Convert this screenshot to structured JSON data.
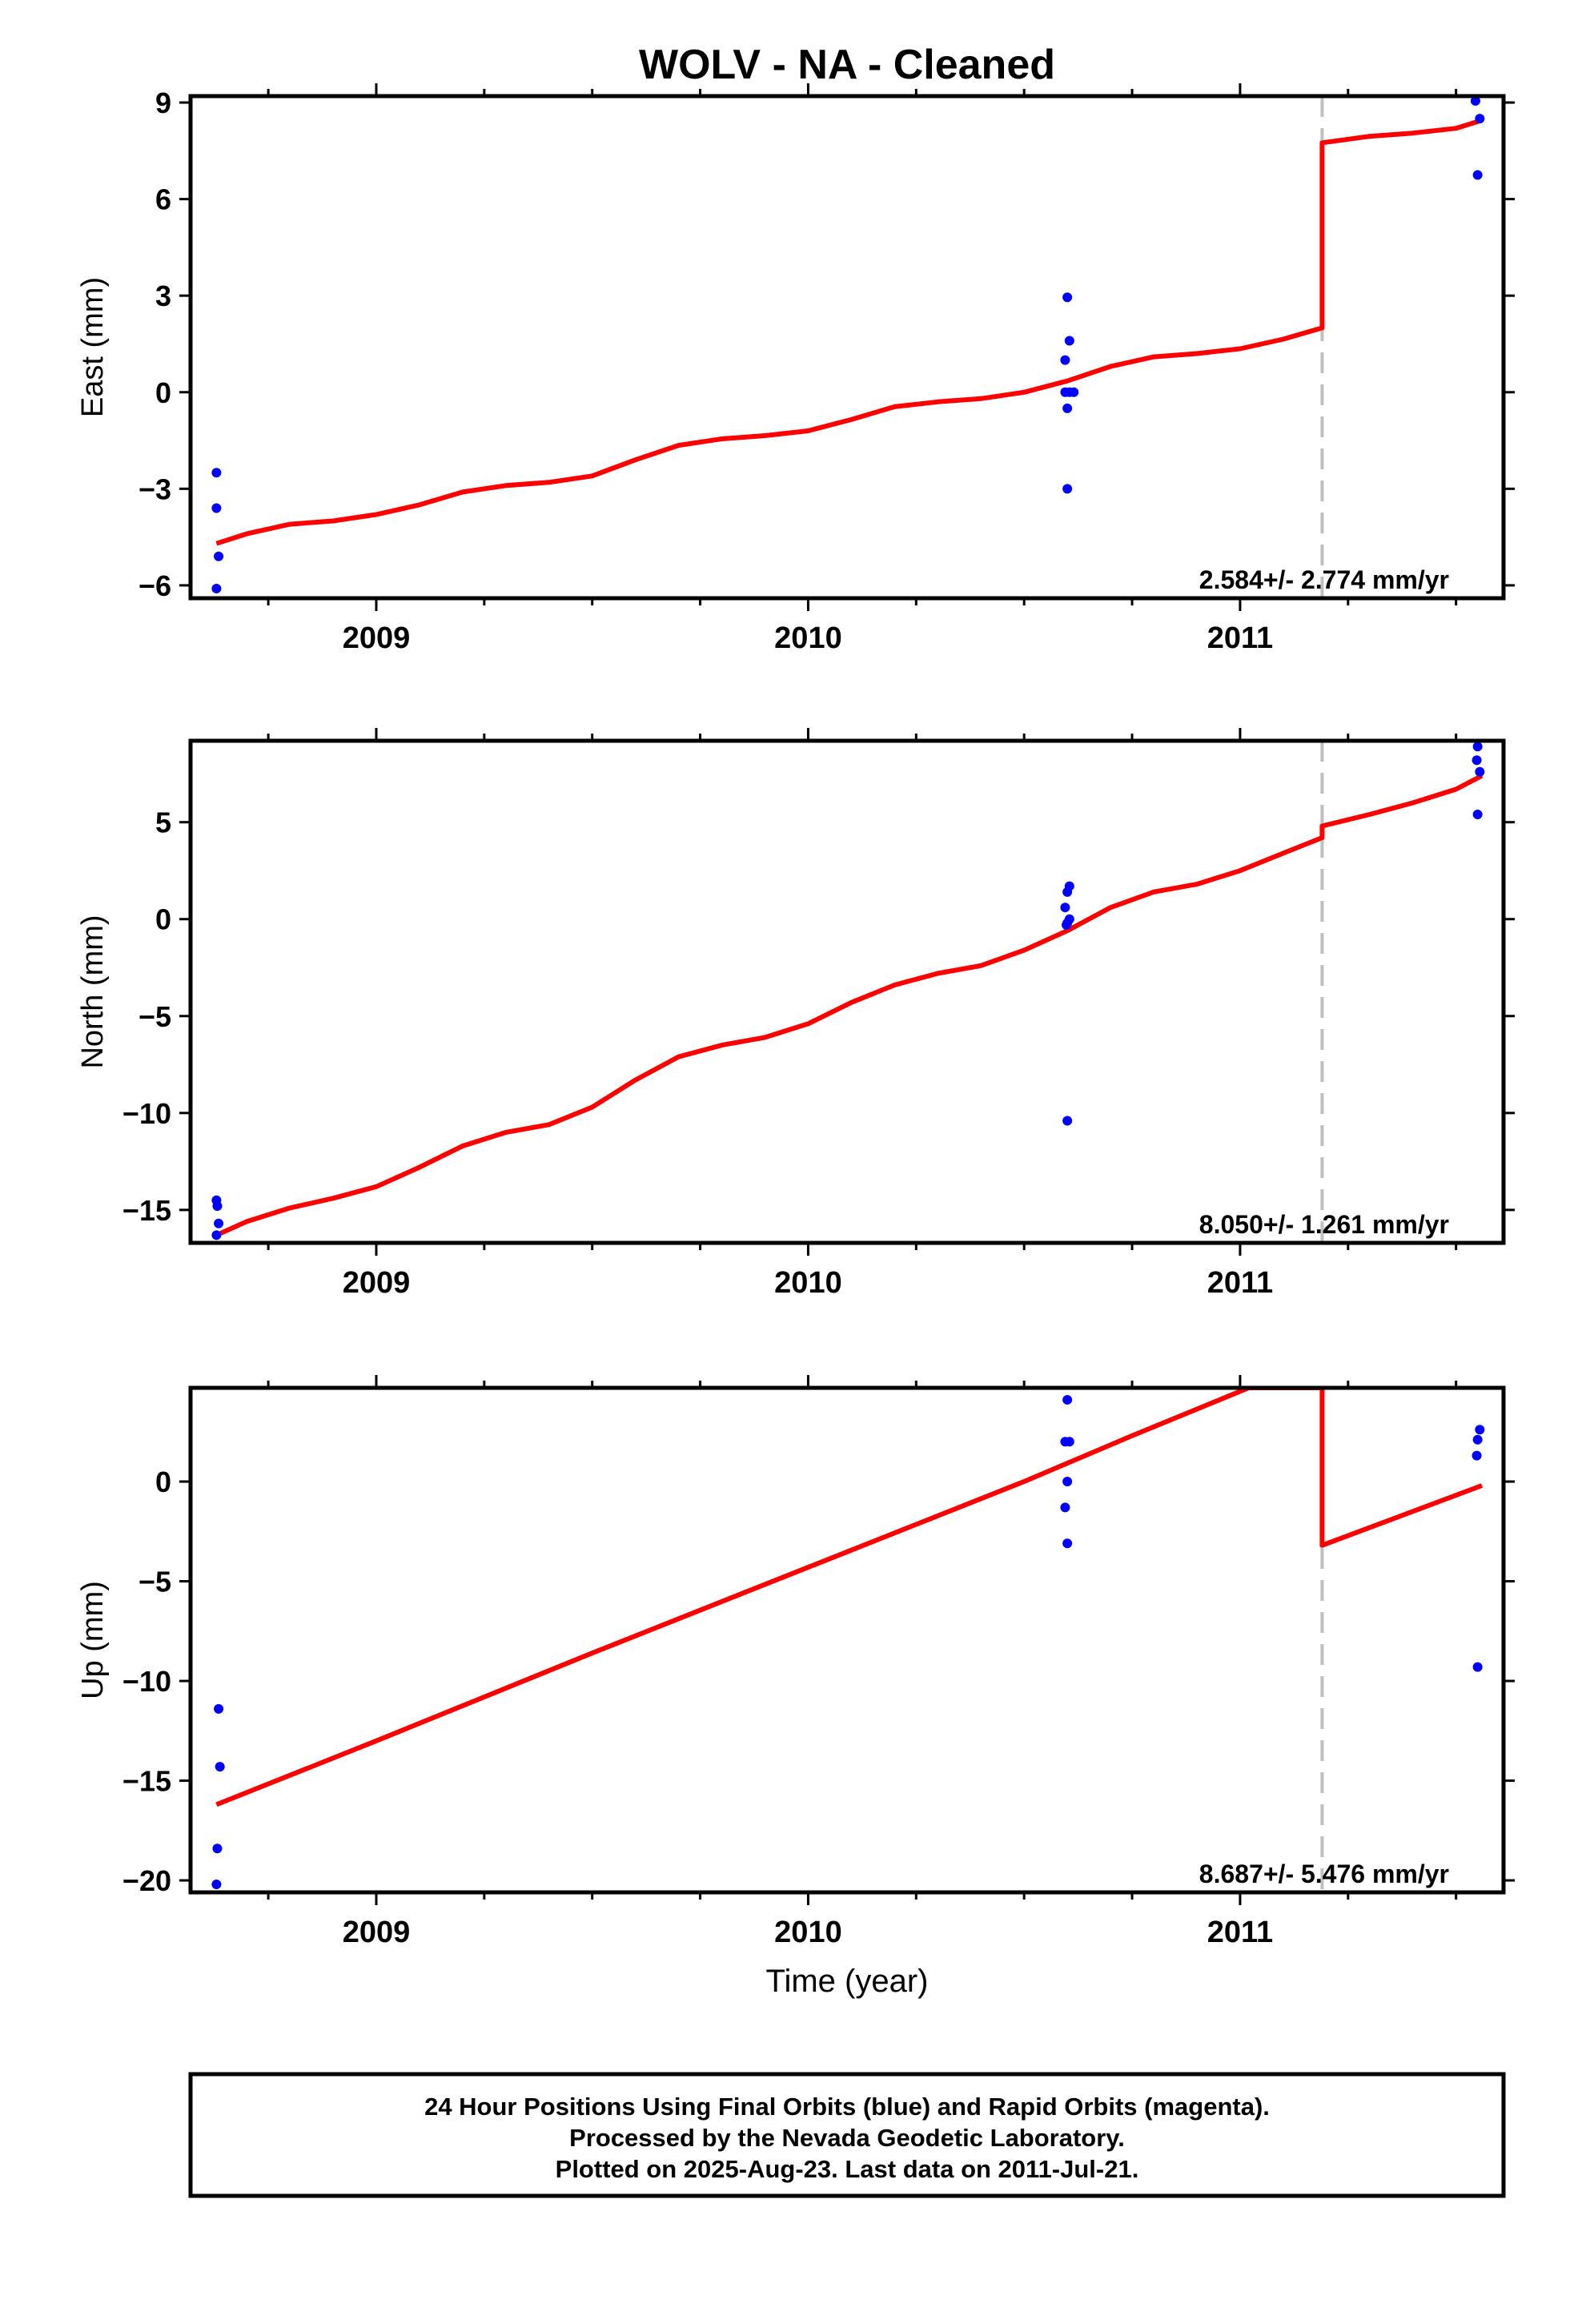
{
  "chart_data": [
    {
      "type": "scatter",
      "title": "WOLV  - NA - Cleaned",
      "ylabel": "East (mm)",
      "xlabel": "",
      "xlim": [
        2008.57,
        2011.61
      ],
      "ylim": [
        -6.4,
        9.2
      ],
      "y_ticks": [
        -6,
        -3,
        0,
        3,
        6,
        9
      ],
      "x_ticks": [
        2009,
        2010,
        2011
      ],
      "x_tick_labels": [
        "2009",
        "2010",
        "2011"
      ],
      "grid": false,
      "break_line_x": 2011.19,
      "series": [
        {
          "color": "#0000ff",
          "points": [
            [
              2008.63,
              -2.5
            ],
            [
              2008.63,
              -3.6
            ],
            [
              2008.635,
              -5.1
            ],
            [
              2008.63,
              -6.1
            ],
            [
              2010.6,
              2.95
            ],
            [
              2010.605,
              1.6
            ],
            [
              2010.595,
              1.0
            ],
            [
              2010.595,
              0.0
            ],
            [
              2010.605,
              0.0
            ],
            [
              2010.615,
              0.0
            ],
            [
              2010.6,
              -0.5
            ],
            [
              2010.6,
              -3.0
            ],
            [
              2011.545,
              9.05
            ],
            [
              2011.555,
              8.5
            ],
            [
              2011.55,
              6.75
            ]
          ]
        },
        {
          "color": "#ff0000",
          "points": [
            [
              2008.63,
              -4.7
            ],
            [
              2008.7,
              -4.4
            ],
            [
              2008.8,
              -4.1
            ],
            [
              2008.9,
              -4.0
            ],
            [
              2009.0,
              -3.8
            ],
            [
              2009.1,
              -3.5
            ],
            [
              2009.2,
              -3.1
            ],
            [
              2009.3,
              -2.9
            ],
            [
              2009.4,
              -2.8
            ],
            [
              2009.5,
              -2.6
            ],
            [
              2009.6,
              -2.1
            ],
            [
              2009.7,
              -1.65
            ],
            [
              2009.8,
              -1.45
            ],
            [
              2009.9,
              -1.35
            ],
            [
              2010.0,
              -1.2
            ],
            [
              2010.1,
              -0.85
            ],
            [
              2010.2,
              -0.45
            ],
            [
              2010.3,
              -0.3
            ],
            [
              2010.4,
              -0.2
            ],
            [
              2010.5,
              0.0
            ],
            [
              2010.6,
              0.35
            ],
            [
              2010.7,
              0.8
            ],
            [
              2010.8,
              1.1
            ],
            [
              2010.9,
              1.2
            ],
            [
              2011.0,
              1.35
            ],
            [
              2011.1,
              1.65
            ],
            [
              2011.19,
              2.0
            ],
            [
              2011.19,
              7.75
            ],
            [
              2011.3,
              7.95
            ],
            [
              2011.4,
              8.05
            ],
            [
              2011.5,
              8.2
            ],
            [
              2011.56,
              8.45
            ]
          ]
        }
      ],
      "annotation": "2.584+/- 2.774 mm/yr"
    },
    {
      "type": "scatter",
      "title": "",
      "ylabel": "North (mm)",
      "xlabel": "",
      "xlim": [
        2008.57,
        2011.61
      ],
      "ylim": [
        -16.7,
        9.2
      ],
      "y_ticks": [
        -15,
        -10,
        -5,
        0,
        5
      ],
      "y_tick_labels": [
        "−15",
        "−10",
        "−5",
        "0",
        "5"
      ],
      "x_ticks": [
        2009,
        2010,
        2011
      ],
      "x_tick_labels": [
        "2009",
        "2010",
        "2011"
      ],
      "grid": false,
      "break_line_x": 2011.19,
      "series": [
        {
          "color": "#0000ff",
          "points": [
            [
              2008.63,
              -14.5
            ],
            [
              2008.632,
              -14.8
            ],
            [
              2008.635,
              -15.7
            ],
            [
              2008.63,
              -16.3
            ],
            [
              2010.605,
              1.7
            ],
            [
              2010.6,
              1.4
            ],
            [
              2010.595,
              0.6
            ],
            [
              2010.605,
              0.0
            ],
            [
              2010.6,
              -0.2
            ],
            [
              2010.598,
              -0.3
            ],
            [
              2010.6,
              -10.4
            ],
            [
              2011.55,
              8.9
            ],
            [
              2011.548,
              8.2
            ],
            [
              2011.555,
              7.6
            ],
            [
              2011.55,
              5.4
            ]
          ]
        },
        {
          "color": "#ff0000",
          "points": [
            [
              2008.63,
              -16.3
            ],
            [
              2008.7,
              -15.6
            ],
            [
              2008.8,
              -14.9
            ],
            [
              2008.9,
              -14.4
            ],
            [
              2009.0,
              -13.8
            ],
            [
              2009.1,
              -12.8
            ],
            [
              2009.2,
              -11.7
            ],
            [
              2009.3,
              -11.0
            ],
            [
              2009.4,
              -10.6
            ],
            [
              2009.5,
              -9.7
            ],
            [
              2009.6,
              -8.3
            ],
            [
              2009.7,
              -7.1
            ],
            [
              2009.8,
              -6.5
            ],
            [
              2009.9,
              -6.1
            ],
            [
              2010.0,
              -5.4
            ],
            [
              2010.1,
              -4.3
            ],
            [
              2010.2,
              -3.4
            ],
            [
              2010.3,
              -2.8
            ],
            [
              2010.4,
              -2.4
            ],
            [
              2010.5,
              -1.6
            ],
            [
              2010.6,
              -0.6
            ],
            [
              2010.7,
              0.6
            ],
            [
              2010.8,
              1.4
            ],
            [
              2010.9,
              1.8
            ],
            [
              2011.0,
              2.5
            ],
            [
              2011.1,
              3.4
            ],
            [
              2011.19,
              4.2
            ],
            [
              2011.19,
              4.8
            ],
            [
              2011.3,
              5.4
            ],
            [
              2011.4,
              6.0
            ],
            [
              2011.5,
              6.7
            ],
            [
              2011.56,
              7.4
            ]
          ]
        }
      ],
      "annotation": "8.050+/- 1.261 mm/yr"
    },
    {
      "type": "scatter",
      "title": "",
      "ylabel": "Up (mm)",
      "xlabel": "Time (year)",
      "xlim": [
        2008.57,
        2011.61
      ],
      "ylim": [
        -20.6,
        4.7
      ],
      "y_ticks": [
        -20,
        -15,
        -10,
        -5,
        0
      ],
      "y_tick_labels": [
        "−20",
        "−15",
        "−10",
        "−5",
        "0"
      ],
      "x_ticks": [
        2009,
        2010,
        2011
      ],
      "x_tick_labels": [
        "2009",
        "2010",
        "2011"
      ],
      "grid": false,
      "break_line_x": 2011.19,
      "series": [
        {
          "color": "#0000ff",
          "points": [
            [
              2008.635,
              -11.4
            ],
            [
              2008.638,
              -14.3
            ],
            [
              2008.632,
              -18.4
            ],
            [
              2008.63,
              -20.2
            ],
            [
              2010.6,
              4.1
            ],
            [
              2010.595,
              2.0
            ],
            [
              2010.605,
              2.0
            ],
            [
              2010.6,
              0.0
            ],
            [
              2010.595,
              -1.3
            ],
            [
              2010.6,
              -3.1
            ],
            [
              2011.555,
              2.6
            ],
            [
              2011.55,
              2.1
            ],
            [
              2011.548,
              1.3
            ],
            [
              2011.55,
              -9.3
            ]
          ]
        },
        {
          "color": "#ff0000",
          "points": [
            [
              2008.63,
              -16.2
            ],
            [
              2009.0,
              -13.0
            ],
            [
              2009.5,
              -8.6
            ],
            [
              2010.0,
              -4.3
            ],
            [
              2010.5,
              0.0
            ],
            [
              2010.75,
              2.3
            ],
            [
              2011.02,
              4.7
            ],
            [
              2011.19,
              4.7
            ],
            [
              2011.19,
              -3.2
            ],
            [
              2011.56,
              -0.2
            ]
          ]
        }
      ],
      "annotation": "8.687+/- 5.476 mm/yr"
    }
  ],
  "footer": {
    "line1": "24 Hour Positions Using Final Orbits (blue) and Rapid Orbits (magenta).",
    "line2": "Processed by the Nevada Geodetic Laboratory.",
    "line3": "Plotted on 2025-Aug-23. Last data on 2011-Jul-21."
  }
}
